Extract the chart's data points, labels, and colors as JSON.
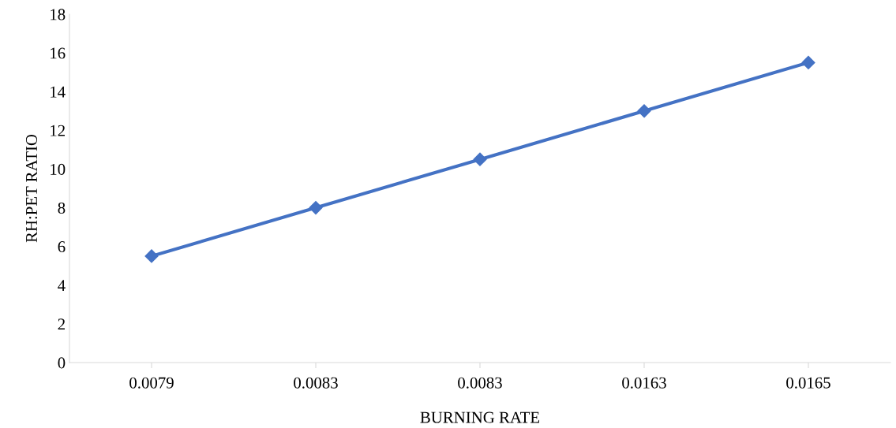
{
  "chart_data": {
    "type": "line",
    "xlabel": "BURNING RATE",
    "ylabel": "RH:PET RATIO",
    "categories": [
      "0.0079",
      "0.0083",
      "0.0083",
      "0.0163",
      "0.0165"
    ],
    "series": [
      {
        "color": "#4472c4",
        "values": [
          5.5,
          8,
          10.5,
          13,
          15.5
        ]
      }
    ],
    "ylim": [
      0,
      18
    ],
    "yticks": [
      0,
      2,
      4,
      6,
      8,
      10,
      12,
      14,
      16,
      18
    ],
    "marker": "diamond",
    "line_style": "solid",
    "grid": false,
    "legend": false
  }
}
